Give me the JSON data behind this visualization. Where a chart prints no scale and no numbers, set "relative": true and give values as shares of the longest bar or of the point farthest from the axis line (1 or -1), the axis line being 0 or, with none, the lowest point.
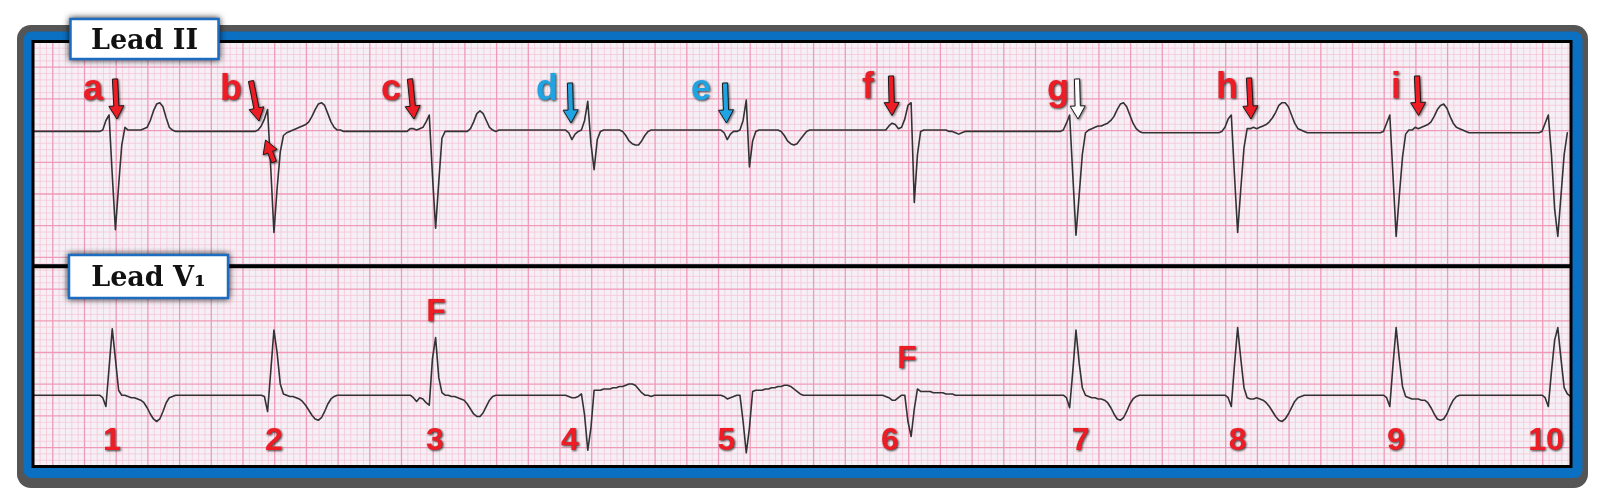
{
  "chart_data": [
    {
      "type": "line",
      "title": "Lead II",
      "grid": true,
      "relative": true,
      "color": "#333333",
      "categories": [
        null,
        null,
        null,
        null,
        null,
        null,
        null,
        null,
        null,
        null,
        null,
        null,
        null,
        null,
        null,
        null,
        null,
        null,
        null,
        null,
        null,
        null,
        null,
        null,
        null,
        null,
        null,
        null,
        null,
        null,
        null,
        null,
        null,
        null,
        null,
        null,
        null,
        null,
        null,
        null,
        null,
        null,
        null,
        null,
        null,
        null,
        null,
        null,
        null,
        null,
        null,
        null,
        null,
        null,
        null,
        null,
        null,
        null,
        null,
        null,
        null,
        null,
        null,
        null,
        null,
        null,
        null,
        null,
        null,
        null,
        null,
        null,
        null,
        null,
        null,
        null,
        null,
        null,
        null,
        null,
        null,
        null,
        null,
        null,
        null,
        null,
        null,
        null,
        null,
        null,
        null,
        null,
        null,
        null,
        null,
        null,
        null,
        null,
        null,
        null,
        null,
        null,
        null,
        null,
        null,
        null,
        null,
        null,
        null,
        null,
        null,
        null,
        null,
        null,
        null,
        null,
        null,
        null,
        null,
        null,
        null,
        null,
        null,
        null,
        null,
        null,
        null,
        null,
        null,
        null,
        null,
        null,
        null,
        null,
        null,
        null,
        null,
        null,
        null,
        null,
        null,
        null,
        null,
        null,
        null,
        null,
        null,
        null,
        null,
        null,
        null,
        null,
        null,
        null,
        null,
        null,
        null,
        null,
        null,
        null,
        null,
        null,
        null,
        null,
        null,
        null,
        null,
        null,
        null,
        null,
        null,
        null,
        null,
        null,
        null,
        null,
        null,
        null,
        null,
        null,
        null,
        null,
        null,
        null,
        null,
        null,
        null,
        null,
        null,
        null,
        null,
        null,
        null,
        null,
        null,
        null,
        null,
        null,
        null,
        null,
        null,
        null,
        null,
        null,
        null,
        null,
        null,
        null,
        null,
        null,
        null,
        null,
        null,
        null,
        null,
        null,
        null,
        null,
        null,
        null,
        null,
        null,
        null,
        null,
        null,
        null,
        null,
        null,
        null,
        null,
        null,
        null,
        null,
        null,
        null,
        null,
        null,
        null,
        null,
        null,
        null,
        null,
        null,
        null,
        null,
        null,
        null,
        null,
        null,
        null,
        null,
        null,
        null,
        null,
        null,
        null,
        null,
        null,
        null,
        null,
        null,
        null,
        null,
        null,
        null,
        null,
        null,
        null,
        null,
        null,
        null,
        null,
        null,
        null,
        null,
        null,
        null,
        null,
        null,
        null,
        null,
        null,
        null,
        null,
        null,
        null,
        null,
        null,
        null,
        null,
        null,
        null,
        null,
        null,
        null,
        null,
        null,
        null,
        null,
        null,
        null,
        null,
        null,
        null,
        null,
        null,
        null,
        null,
        null,
        null,
        null,
        null,
        null,
        null,
        null,
        null,
        null,
        null,
        null,
        null,
        null,
        null,
        null,
        null,
        null,
        null,
        null,
        null,
        null,
        null,
        null,
        null,
        null,
        null,
        null,
        null,
        null,
        null,
        null,
        null,
        null,
        null,
        null,
        null,
        null,
        null,
        null,
        null,
        null,
        null,
        null,
        null,
        null,
        null,
        null,
        null,
        null,
        null,
        null,
        null,
        null,
        null,
        null,
        null,
        null,
        null,
        null,
        null,
        null,
        null,
        null,
        null,
        null,
        null,
        null,
        null,
        null,
        null,
        null,
        null,
        null,
        null,
        null,
        null,
        null,
        null,
        null,
        null,
        null,
        null,
        null,
        null,
        null,
        null,
        null,
        null,
        null,
        null,
        null,
        null,
        null,
        null,
        null,
        null,
        null,
        null,
        null,
        null,
        null,
        null,
        null,
        null,
        null,
        null,
        null,
        null,
        null,
        null,
        null,
        null,
        null,
        null,
        null,
        null,
        null,
        null,
        null,
        null,
        null,
        null,
        null,
        null,
        null,
        null,
        null,
        null,
        null,
        null,
        null,
        null,
        null,
        null,
        null,
        null,
        null,
        null,
        null,
        null,
        null,
        null,
        null,
        null,
        null,
        null,
        null,
        null,
        null,
        null,
        null,
        null,
        null,
        null,
        null,
        null,
        null,
        null,
        null,
        null,
        null,
        null,
        null,
        null,
        null,
        null,
        null,
        null,
        null,
        null,
        null,
        null,
        null,
        null,
        null,
        null,
        null,
        null
      ],
      "values": [
        0.77,
        0.77,
        0.77,
        0.77,
        0.77,
        0.77,
        0.77,
        0.77,
        0.77,
        0.77,
        0.77,
        0.77,
        0.77,
        0.77,
        0.77,
        0.77,
        0.77,
        0.77,
        0.77,
        0.77,
        0.77,
        0.77,
        0.78,
        0.85,
        0.89,
        0.45,
        0.05,
        0.37,
        0.67,
        0.8,
        0.78,
        0.78,
        0.78,
        0.78,
        0.78,
        0.79,
        0.8,
        0.85,
        0.92,
        0.97,
        0.98,
        0.95,
        0.87,
        0.8,
        0.78,
        0.77,
        0.77,
        0.77,
        0.77,
        0.77,
        0.77,
        0.77,
        0.77,
        0.77,
        0.77,
        0.77,
        0.77,
        0.77,
        0.77,
        0.77,
        0.77,
        0.77,
        0.77,
        0.77,
        0.77,
        0.77,
        0.77,
        0.77,
        0.77,
        0.77,
        0.77,
        0.78,
        0.81,
        0.86,
        0.93,
        0.5,
        0.03,
        0.35,
        0.62,
        0.74,
        0.76,
        0.77,
        0.78,
        0.79,
        0.8,
        0.81,
        0.82,
        0.84,
        0.88,
        0.93,
        0.97,
        0.98,
        0.96,
        0.9,
        0.84,
        0.8,
        0.78,
        0.78,
        0.77,
        0.77,
        0.77,
        0.77,
        0.77,
        0.77,
        0.77,
        0.77,
        0.77,
        0.77,
        0.77,
        0.77,
        0.77,
        0.77,
        0.77,
        0.77,
        0.77,
        0.77,
        0.77,
        0.77,
        0.77,
        0.79,
        0.79,
        0.78,
        0.79,
        0.8,
        0.84,
        0.89,
        0.45,
        0.06,
        0.4,
        0.72,
        0.77,
        0.77,
        0.77,
        0.77,
        0.77,
        0.77,
        0.77,
        0.77,
        0.79,
        0.84,
        0.9,
        0.92,
        0.9,
        0.85,
        0.8,
        0.78,
        0.77,
        0.78,
        0.78,
        0.78,
        0.78,
        0.78,
        0.78,
        0.78,
        0.78,
        0.78,
        0.78,
        0.78,
        0.78,
        0.78,
        0.78,
        0.78,
        0.78,
        0.78,
        0.78,
        0.78,
        0.78,
        0.78,
        0.78,
        0.76,
        0.71,
        0.75,
        0.77,
        0.78,
        0.85,
        0.99,
        0.68,
        0.49,
        0.71,
        0.77,
        0.78,
        0.78,
        0.78,
        0.78,
        0.78,
        0.78,
        0.77,
        0.74,
        0.7,
        0.68,
        0.67,
        0.67,
        0.7,
        0.74,
        0.77,
        0.78,
        0.78,
        0.78,
        0.78,
        0.78,
        0.78,
        0.78,
        0.78,
        0.78,
        0.78,
        0.78,
        0.78,
        0.78,
        0.78,
        0.78,
        0.78,
        0.78,
        0.78,
        0.78,
        0.78,
        0.78,
        0.78,
        0.78,
        0.76,
        0.71,
        0.75,
        0.77,
        0.77,
        0.78,
        0.85,
        1,
        0.51,
        0.7,
        0.77,
        0.78,
        0.78,
        0.78,
        0.78,
        0.78,
        0.78,
        0.78,
        0.77,
        0.74,
        0.7,
        0.68,
        0.67,
        0.68,
        0.71,
        0.74,
        0.77,
        0.78,
        0.78,
        0.78,
        0.78,
        0.78,
        0.78,
        0.78,
        0.78,
        0.78,
        0.78,
        0.78,
        0.78,
        0.78,
        0.78,
        0.78,
        0.78,
        0.78,
        0.78,
        0.78,
        0.78,
        0.78,
        0.78,
        0.78,
        0.78,
        0.78,
        0.81,
        0.83,
        0.82,
        0.79,
        0.8,
        0.86,
        0.96,
        0.98,
        0.25,
        0.6,
        0.77,
        0.78,
        0.78,
        0.78,
        0.78,
        0.78,
        0.78,
        0.78,
        0.78,
        0.77,
        0.77,
        0.76,
        0.75,
        0.76,
        0.77,
        0.77,
        0.77,
        0.77,
        0.77,
        0.77,
        0.77,
        0.77,
        0.77,
        0.77,
        0.77,
        0.77,
        0.77,
        0.77,
        0.77,
        0.77,
        0.77,
        0.77,
        0.77,
        0.77,
        0.77,
        0.77,
        0.77,
        0.77,
        0.77,
        0.77,
        0.77,
        0.77,
        0.77,
        0.77,
        0.77,
        0.78,
        0.83,
        0.89,
        0.45,
        0.01,
        0.3,
        0.6,
        0.76,
        0.78,
        0.79,
        0.8,
        0.81,
        0.81,
        0.82,
        0.83,
        0.85,
        0.88,
        0.93,
        0.97,
        0.98,
        0.95,
        0.89,
        0.83,
        0.79,
        0.77,
        0.76,
        0.76,
        0.76,
        0.76,
        0.76,
        0.76,
        0.76,
        0.76,
        0.76,
        0.76,
        0.76,
        0.76,
        0.76,
        0.76,
        0.76,
        0.76,
        0.76,
        0.76,
        0.76,
        0.76,
        0.76,
        0.76,
        0.76,
        0.76,
        0.76,
        0.77,
        0.8,
        0.86,
        0.89,
        0.45,
        0.03,
        0.35,
        0.65,
        0.79,
        0.79,
        0.8,
        0.79,
        0.8,
        0.81,
        0.82,
        0.84,
        0.87,
        0.91,
        0.96,
        0.98,
        0.98,
        0.95,
        0.89,
        0.83,
        0.79,
        0.78,
        0.77,
        0.76,
        0.76,
        0.76,
        0.76,
        0.76,
        0.76,
        0.76,
        0.76,
        0.76,
        0.76,
        0.76,
        0.76,
        0.76,
        0.76,
        0.76,
        0.76,
        0.76,
        0.76,
        0.76,
        0.76,
        0.76,
        0.76,
        0.76,
        0.76,
        0.77,
        0.83,
        0.89,
        0.45,
        0,
        0.3,
        0.58,
        0.75,
        0.78,
        0.78,
        0.8,
        0.79,
        0.8,
        0.81,
        0.82,
        0.84,
        0.88,
        0.93,
        0.96,
        0.97,
        0.94,
        0.88,
        0.83,
        0.8,
        0.79,
        0.78,
        0.77,
        0.76,
        0.76,
        0.76,
        0.76,
        0.76,
        0.76,
        0.76,
        0.76,
        0.76,
        0.76,
        0.76,
        0.76,
        0.76,
        0.76,
        0.76,
        0.76,
        0.76,
        0.76,
        0.76,
        0.76,
        0.76,
        0.76,
        0.76,
        0.77,
        0.83,
        0.89,
        0.6,
        0.2,
        0,
        0.3,
        0.6,
        0.76,
        null
      ],
      "annotations": [
        "a",
        "b",
        "c",
        "d",
        "e",
        "f",
        "g",
        "h",
        "i"
      ]
    },
    {
      "type": "line",
      "title": "Lead V₁",
      "grid": true,
      "relative": true,
      "color": "#333333",
      "categories": [
        null,
        null,
        null,
        null,
        null,
        null,
        null,
        null,
        null,
        null,
        null,
        null,
        null,
        null,
        null,
        null,
        null,
        null,
        null,
        null,
        null,
        null,
        null,
        null,
        null,
        null,
        null,
        null,
        null,
        null,
        null,
        null,
        null,
        null,
        null,
        null,
        null,
        null,
        null,
        null,
        null,
        null,
        null,
        null,
        null,
        null,
        null,
        null,
        null,
        null,
        null,
        null,
        null,
        null,
        null,
        null,
        null,
        null,
        null,
        null,
        null,
        null,
        null,
        null,
        null,
        null,
        null,
        null,
        null,
        null,
        null,
        null,
        null,
        null,
        null,
        null,
        null,
        null,
        null,
        null,
        null,
        null,
        null,
        null,
        null,
        null,
        null,
        null,
        null,
        null,
        null,
        null,
        null,
        null,
        null,
        null,
        null,
        null,
        null,
        null,
        null,
        null,
        null,
        null,
        null,
        null,
        null,
        null,
        null,
        null,
        null,
        null,
        null,
        null,
        null,
        null,
        null,
        null,
        null,
        null,
        null,
        null,
        null,
        null,
        null,
        null,
        null,
        null,
        null,
        null,
        null,
        null,
        null,
        null,
        null,
        null,
        null,
        null,
        null,
        null,
        null,
        null,
        null,
        null,
        null,
        null,
        null,
        null,
        null,
        null,
        null,
        null,
        null,
        null,
        null,
        null,
        null,
        null,
        null,
        null,
        null,
        null,
        null,
        null,
        null,
        null,
        null,
        null,
        null,
        null,
        null,
        null,
        null,
        null,
        null,
        null,
        null,
        null,
        null,
        null,
        null,
        null,
        null,
        null,
        null,
        null,
        null,
        null,
        null,
        null,
        null,
        null,
        null,
        null,
        null,
        null,
        null,
        null,
        null,
        null,
        null,
        null,
        null,
        null,
        null,
        null,
        null,
        null,
        null,
        null,
        null,
        null,
        null,
        null,
        null,
        null,
        null,
        null,
        null,
        null,
        null,
        null,
        null,
        null,
        null,
        null,
        null,
        null,
        null,
        null,
        null,
        null,
        null,
        null,
        null,
        null,
        null,
        null,
        null,
        null,
        null,
        null,
        null,
        null,
        null,
        null,
        null,
        null,
        null,
        null,
        null,
        null,
        null,
        null,
        null,
        null,
        null,
        null,
        null,
        null,
        null,
        null,
        null,
        null,
        null,
        null,
        null,
        null,
        null,
        null,
        null,
        null,
        null,
        null,
        null,
        null,
        null,
        null,
        null,
        null,
        null,
        null,
        null,
        null,
        null,
        null,
        null,
        null,
        null,
        null,
        null,
        null,
        null,
        null,
        null,
        null,
        null,
        null,
        null,
        null,
        null,
        null,
        null,
        null,
        null,
        null,
        null,
        null,
        null,
        null,
        null,
        null,
        null,
        null,
        null,
        null,
        null,
        null,
        null,
        null,
        null,
        null,
        null,
        null,
        null,
        null,
        null,
        null,
        null,
        null,
        null,
        null,
        null,
        null,
        null,
        null,
        null,
        null,
        null,
        null,
        null,
        null,
        null,
        null,
        null,
        null,
        null,
        null,
        null,
        null,
        null,
        null,
        null,
        null,
        null,
        null,
        null,
        null,
        null,
        null,
        null,
        null,
        null,
        null,
        null,
        null,
        null,
        null,
        null,
        null,
        null,
        null,
        null,
        null,
        null,
        null,
        null,
        null,
        null,
        null,
        null,
        null,
        null,
        null,
        null,
        null,
        null,
        null,
        null,
        null,
        null,
        null,
        null,
        null,
        null,
        null,
        null,
        null,
        null,
        null,
        null,
        null,
        null,
        null,
        null,
        null,
        null,
        null,
        null,
        null,
        null,
        null,
        null,
        null,
        null,
        null,
        null,
        null,
        null,
        null,
        null,
        null,
        null,
        null,
        null,
        null,
        null,
        null,
        null,
        null,
        null,
        null,
        null,
        null,
        null,
        null,
        null,
        null,
        null,
        null,
        null,
        null,
        null,
        null,
        null,
        null,
        null,
        null,
        null,
        null,
        null,
        null,
        null,
        null,
        null,
        null,
        null,
        null,
        null,
        null,
        null,
        null,
        null,
        null,
        null,
        null,
        null,
        null,
        null,
        null,
        null,
        null,
        null,
        null,
        null,
        null,
        null,
        null,
        null,
        null,
        null,
        null,
        null,
        null,
        null,
        null
      ],
      "values": [
        0.46,
        0.46,
        0.46,
        0.46,
        0.46,
        0.46,
        0.46,
        0.46,
        0.46,
        0.46,
        0.46,
        0.46,
        0.46,
        0.46,
        0.46,
        0.46,
        0.46,
        0.46,
        0.46,
        0.46,
        0.46,
        0.46,
        0.44,
        0.37,
        0.68,
        0.99,
        0.75,
        0.5,
        0.46,
        0.46,
        0.45,
        0.44,
        0.44,
        0.43,
        0.42,
        0.4,
        0.36,
        0.31,
        0.27,
        0.25,
        0.27,
        0.33,
        0.4,
        0.44,
        0.45,
        0.46,
        0.46,
        0.46,
        0.46,
        0.46,
        0.46,
        0.46,
        0.46,
        0.46,
        0.46,
        0.46,
        0.46,
        0.46,
        0.46,
        0.46,
        0.46,
        0.46,
        0.46,
        0.46,
        0.46,
        0.46,
        0.46,
        0.46,
        0.46,
        0.46,
        0.46,
        0.46,
        0.46,
        0.45,
        0.33,
        0.65,
        0.98,
        0.8,
        0.55,
        0.47,
        0.46,
        0.45,
        0.45,
        0.44,
        0.43,
        0.41,
        0.38,
        0.34,
        0.3,
        0.27,
        0.26,
        0.28,
        0.33,
        0.39,
        0.43,
        0.45,
        0.46,
        0.46,
        0.46,
        0.46,
        0.46,
        0.46,
        0.46,
        0.46,
        0.46,
        0.46,
        0.46,
        0.46,
        0.46,
        0.46,
        0.46,
        0.46,
        0.46,
        0.46,
        0.46,
        0.46,
        0.46,
        0.46,
        0.46,
        0.46,
        0.44,
        0.41,
        0.44,
        0.43,
        0.4,
        0.38,
        0.75,
        0.92,
        0.6,
        0.48,
        0.46,
        0.46,
        0.45,
        0.45,
        0.44,
        0.43,
        0.42,
        0.39,
        0.35,
        0.31,
        0.29,
        0.29,
        0.32,
        0.37,
        0.42,
        0.45,
        0.46,
        0.46,
        0.46,
        0.46,
        0.46,
        0.46,
        0.46,
        0.46,
        0.46,
        0.46,
        0.46,
        0.46,
        0.46,
        0.46,
        0.46,
        0.46,
        0.46,
        0.46,
        0.46,
        0.46,
        0.46,
        0.46,
        0.46,
        0.45,
        0.44,
        0.44,
        0.45,
        0.47,
        0.3,
        0.02,
        0.2,
        0.5,
        0.5,
        0.5,
        0.51,
        0.51,
        0.51,
        0.52,
        0.52,
        0.53,
        0.53,
        0.54,
        0.55,
        0.55,
        0.54,
        0.51,
        0.48,
        0.46,
        0.46,
        0.45,
        0.46,
        0.46,
        0.46,
        0.46,
        0.46,
        0.46,
        0.46,
        0.46,
        0.46,
        0.46,
        0.46,
        0.46,
        0.46,
        0.46,
        0.46,
        0.46,
        0.46,
        0.46,
        0.46,
        0.46,
        0.46,
        0.46,
        0.45,
        0.43,
        0.44,
        0.45,
        0.46,
        0.46,
        0.25,
        0,
        0.2,
        0.49,
        0.5,
        0.5,
        0.5,
        0.51,
        0.51,
        0.52,
        0.52,
        0.53,
        0.53,
        0.54,
        0.54,
        0.53,
        0.51,
        0.49,
        0.47,
        0.46,
        0.46,
        0.46,
        0.46,
        0.46,
        0.46,
        0.46,
        0.46,
        0.46,
        0.46,
        0.46,
        0.46,
        0.46,
        0.46,
        0.46,
        0.46,
        0.46,
        0.46,
        0.46,
        0.46,
        0.46,
        0.46,
        0.46,
        0.46,
        0.46,
        0.46,
        0.45,
        0.44,
        0.42,
        0.42,
        0.44,
        0.46,
        0.46,
        0.25,
        0.13,
        0.35,
        0.51,
        0.49,
        0.49,
        0.49,
        0.49,
        0.48,
        0.48,
        0.48,
        0.48,
        0.47,
        0.47,
        0.47,
        0.46,
        0.46,
        0.46,
        0.46,
        0.46,
        0.46,
        0.46,
        0.46,
        0.46,
        0.46,
        0.46,
        0.46,
        0.46,
        0.46,
        0.46,
        0.46,
        0.46,
        0.46,
        0.46,
        0.46,
        0.46,
        0.46,
        0.46,
        0.46,
        0.46,
        0.46,
        0.46,
        0.46,
        0.46,
        0.46,
        0.46,
        0.46,
        0.46,
        0.46,
        0.46,
        0.44,
        0.36,
        0.65,
        0.98,
        0.72,
        0.52,
        0.46,
        0.45,
        0.44,
        0.44,
        0.43,
        0.43,
        0.42,
        0.4,
        0.36,
        0.31,
        0.27,
        0.26,
        0.28,
        0.33,
        0.39,
        0.43,
        0.45,
        0.46,
        0.46,
        0.46,
        0.46,
        0.46,
        0.46,
        0.46,
        0.46,
        0.46,
        0.46,
        0.46,
        0.46,
        0.46,
        0.46,
        0.46,
        0.46,
        0.46,
        0.46,
        0.46,
        0.46,
        0.46,
        0.46,
        0.46,
        0.46,
        0.46,
        0.46,
        0.46,
        0.46,
        0.44,
        0.37,
        0.7,
        1,
        0.75,
        0.52,
        0.44,
        0.43,
        0.43,
        0.44,
        0.43,
        0.42,
        0.4,
        0.37,
        0.33,
        0.29,
        0.26,
        0.25,
        0.27,
        0.31,
        0.36,
        0.41,
        0.44,
        0.45,
        0.46,
        0.46,
        0.46,
        0.46,
        0.46,
        0.46,
        0.46,
        0.46,
        0.46,
        0.46,
        0.46,
        0.46,
        0.46,
        0.46,
        0.46,
        0.46,
        0.46,
        0.46,
        0.46,
        0.46,
        0.46,
        0.46,
        0.46,
        0.46,
        0.46,
        0.46,
        0.44,
        0.37,
        0.7,
        1,
        0.75,
        0.53,
        0.45,
        0.44,
        0.43,
        0.43,
        0.43,
        0.42,
        0.42,
        0.4,
        0.36,
        0.31,
        0.27,
        0.26,
        0.27,
        0.31,
        0.37,
        0.42,
        0.45,
        0.46,
        0.46,
        0.46,
        0.46,
        0.46,
        0.46,
        0.46,
        0.46,
        0.46,
        0.46,
        0.46,
        0.46,
        0.46,
        0.46,
        0.46,
        0.46,
        0.46,
        0.46,
        0.46,
        0.46,
        0.46,
        0.46,
        0.46,
        0.46,
        0.46,
        0.46,
        0.46,
        0.44,
        0.37,
        0.65,
        0.9,
        1,
        0.75,
        0.52,
        0.47,
        0.45
      ],
      "annotations": [
        "F",
        "F",
        "1",
        "2",
        "3",
        "4",
        "5",
        "6",
        "7",
        "8",
        "9",
        "10"
      ]
    }
  ]
}
